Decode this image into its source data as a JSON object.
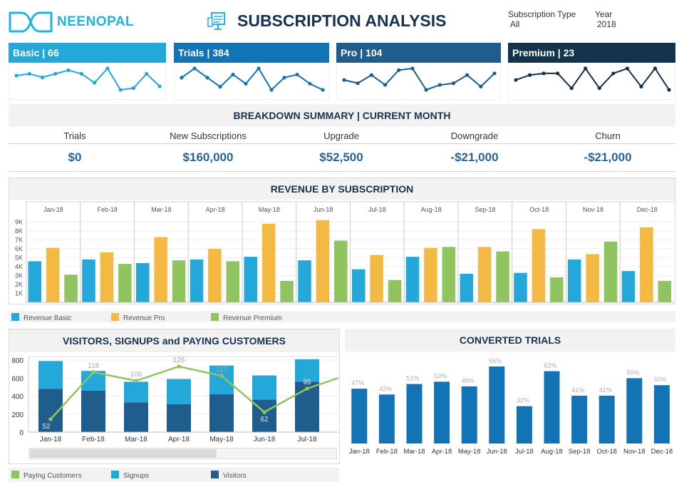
{
  "header": {
    "logo_text": "NEENOPAL",
    "title": "SUBSCRIPTION ANALYSIS",
    "filters": [
      {
        "label": "Subscription Type",
        "value": "All"
      },
      {
        "label": "Year",
        "value": "2018"
      }
    ]
  },
  "kpis": [
    {
      "label": "Basic | 66",
      "color": "#23a8d9",
      "line_color": "#23a8d9",
      "values": [
        97,
        98,
        96,
        98,
        100,
        98,
        93,
        101,
        89,
        90,
        98,
        91
      ]
    },
    {
      "label": "Trials |  384",
      "color": "#1274b5",
      "line_color": "#1274b5",
      "values": [
        98,
        101,
        98,
        95,
        99,
        96,
        101,
        94,
        98,
        99,
        96,
        94
      ]
    },
    {
      "label": "Pro | 104",
      "color": "#1f5d8c",
      "line_color": "#1f5d8c",
      "values": [
        94,
        92,
        97,
        91,
        100,
        101,
        88,
        91,
        92,
        97,
        90,
        98
      ]
    },
    {
      "label": "Premium | 23",
      "color": "#13334d",
      "line_color": "#13334d",
      "values": [
        94,
        97,
        98,
        98,
        89,
        101,
        89,
        98,
        101,
        90,
        101,
        88
      ]
    }
  ],
  "breakdown": {
    "title": "BREAKDOWN SUMMARY | CURRENT MONTH",
    "metrics": [
      {
        "label": "Trials",
        "value": "$0"
      },
      {
        "label": "New Subscriptions",
        "value": "$160,000"
      },
      {
        "label": "Upgrade",
        "value": "$52,500"
      },
      {
        "label": "Downgrade",
        "value": "-$21,000"
      },
      {
        "label": "Churn",
        "value": "-$21,000"
      }
    ]
  },
  "revenue": {
    "title": "REVENUE BY SUBSCRIPTION",
    "legend": [
      "Revenue Basic",
      "Revenue Pro",
      "Revenue Premium"
    ]
  },
  "visitors": {
    "title": "VISITORS, SIGNUPS and PAYING CUSTOMERS",
    "legend": [
      "Paying Customers",
      "Signups",
      "Visitors"
    ]
  },
  "converted": {
    "title": "CONVERTED TRIALS"
  },
  "chart_data": [
    {
      "type": "bar",
      "title": "REVENUE BY SUBSCRIPTION",
      "categories": [
        "Jan-18",
        "Feb-18",
        "Mar-18",
        "Apr-18",
        "May-18",
        "Jun-18",
        "Jul-18",
        "Aug-18",
        "Sep-18",
        "Oct-18",
        "Nov-18",
        "Dec-18"
      ],
      "y_ticks": [
        "1K",
        "2K",
        "3K",
        "4K",
        "5K",
        "6K",
        "7K",
        "8K",
        "9K"
      ],
      "ylim": [
        0,
        9500
      ],
      "series": [
        {
          "name": "Revenue Basic",
          "color": "#23a8d9",
          "values": [
            4600,
            4800,
            4400,
            4800,
            5100,
            4700,
            3700,
            5100,
            3200,
            3300,
            4800,
            3500
          ]
        },
        {
          "name": "Revenue Pro",
          "color": "#f4b942",
          "values": [
            6100,
            5600,
            7300,
            6000,
            8800,
            9200,
            5300,
            6100,
            6200,
            8200,
            5400,
            8400
          ]
        },
        {
          "name": "Revenue Premium",
          "color": "#8fc45f",
          "values": [
            3100,
            4300,
            4700,
            4600,
            2400,
            6900,
            2500,
            6200,
            5700,
            2800,
            6800,
            2400
          ]
        }
      ],
      "legend_position": "bottom"
    },
    {
      "type": "bar",
      "title": "VISITORS, SIGNUPS and PAYING CUSTOMERS",
      "categories": [
        "Jan-18",
        "Feb-18",
        "Mar-18",
        "Apr-18",
        "May-18",
        "Jun-18",
        "Jul-18"
      ],
      "y_ticks": [
        0,
        200,
        400,
        600,
        800
      ],
      "ylim": [
        0,
        840
      ],
      "stacked": true,
      "series": [
        {
          "name": "Visitors",
          "color": "#1f5d8c",
          "values": [
            480,
            460,
            330,
            310,
            420,
            360,
            560
          ]
        },
        {
          "name": "Signups",
          "color": "#23a8d9",
          "values": [
            310,
            220,
            230,
            280,
            320,
            270,
            250
          ]
        },
        {
          "name": "Paying Customers",
          "color": "#8fc45f",
          "type": "line",
          "values": [
            52,
            118,
            106,
            126,
            113,
            62,
            95
          ],
          "labels": [
            "52",
            "118",
            "106",
            "126",
            "113",
            "62",
            "95"
          ]
        }
      ],
      "legend_position": "bottom"
    },
    {
      "type": "bar",
      "title": "CONVERTED TRIALS",
      "categories": [
        "Jan-18",
        "Feb-18",
        "Mar-18",
        "Apr-18",
        "May-18",
        "Jun-18",
        "Jul-18",
        "Aug-18",
        "Sep-18",
        "Oct-18",
        "Nov-18",
        "Dec-18"
      ],
      "values": [
        47,
        42,
        51,
        53,
        49,
        66,
        32,
        62,
        41,
        41,
        56,
        50
      ],
      "labels": [
        "47%",
        "42%",
        "51%",
        "53%",
        "49%",
        "66%",
        "32%",
        "62%",
        "41%",
        "41%",
        "56%",
        "50%"
      ],
      "color": "#1274b5"
    }
  ]
}
